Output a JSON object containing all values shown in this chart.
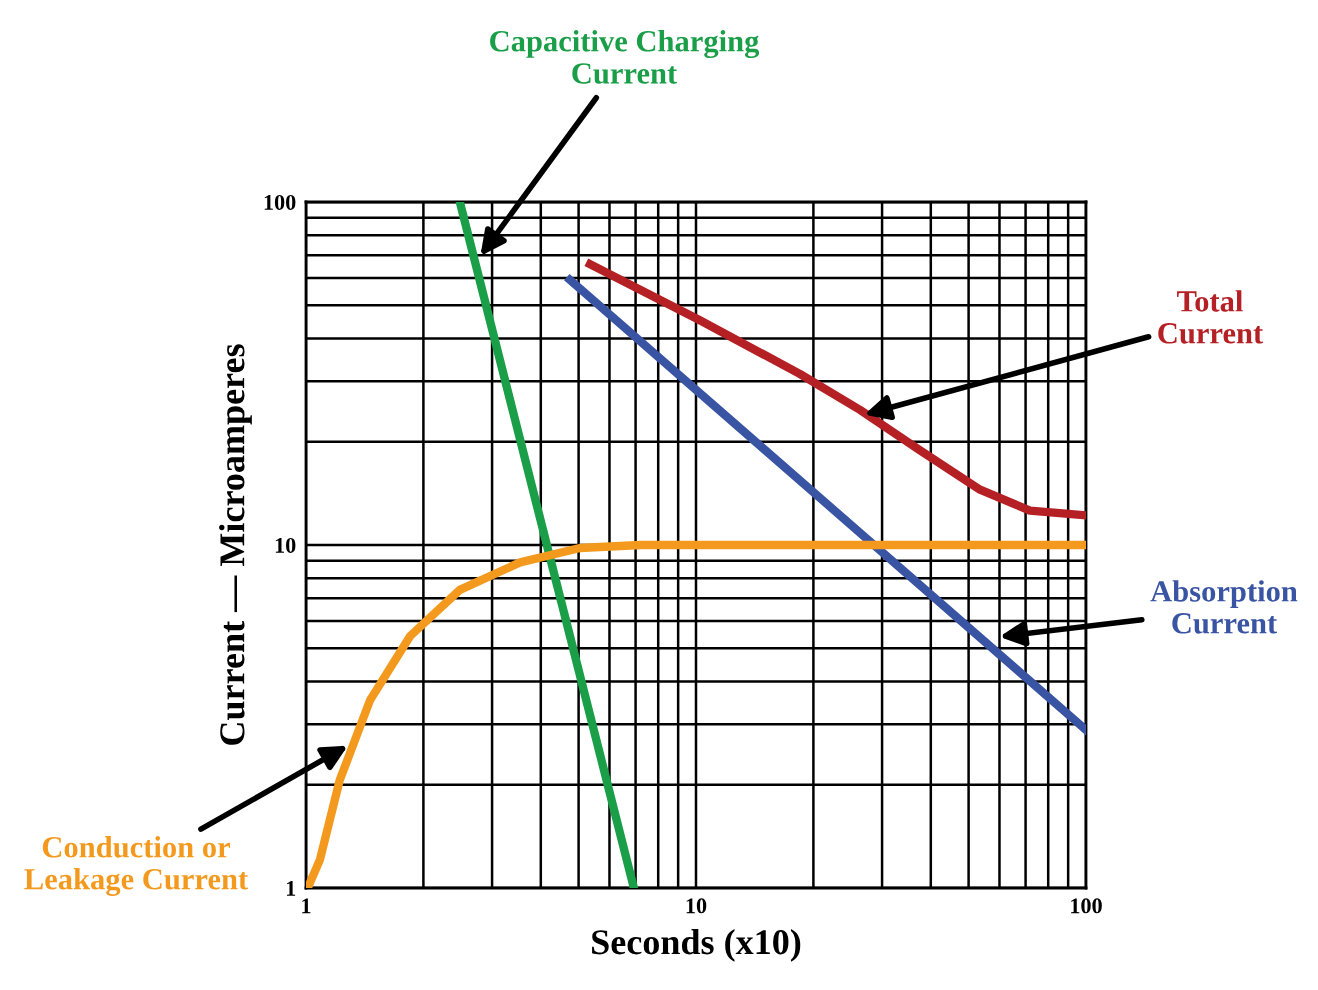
{
  "chart_data": {
    "type": "line",
    "xlabel": "Seconds (x10)",
    "ylabel": "Current — Microamperes",
    "log": "xy",
    "grid": true,
    "xlim": [
      1,
      100
    ],
    "ylim": [
      1,
      100
    ],
    "xticks": [
      1,
      10,
      100
    ],
    "yticks": [
      1,
      10,
      100
    ],
    "marker": "none",
    "line_style": "solid",
    "series": [
      {
        "color": "#1a9e48",
        "x": [
          2.48,
          6.93
        ],
        "values": [
          100,
          1
        ]
      },
      {
        "color": "#b52025",
        "x": [
          5.35,
          10.2,
          18.5,
          26.3,
          37.5,
          53.5,
          71.8,
          100
        ],
        "values": [
          65.9,
          45.3,
          31.5,
          24.8,
          18.9,
          14.5,
          12.6,
          12.2
        ]
      },
      {
        "color": "#3a54a4",
        "x": [
          4.75,
          100
        ],
        "values": [
          59.3,
          2.89
        ]
      },
      {
        "color": "#f39a1e",
        "x": [
          1.01,
          1.086,
          1.22,
          1.46,
          1.85,
          2.48,
          3.54,
          5.04,
          7.2,
          100
        ],
        "values": [
          1,
          1.21,
          2.06,
          3.53,
          5.43,
          7.4,
          8.9,
          9.8,
          10,
          10
        ]
      }
    ],
    "annotations": [
      {
        "text": "Capacitive Charging\nCurrent",
        "x": 2.8,
        "y": 69.6
      },
      {
        "text": "Total\nCurrent",
        "x": 27,
        "y": 24
      },
      {
        "text": "Absorption\nCurrent",
        "x": 60,
        "y": 5.4
      },
      {
        "text": "Conduction or\nLeakage Current",
        "x": 1.28,
        "y": 2.6
      }
    ]
  }
}
